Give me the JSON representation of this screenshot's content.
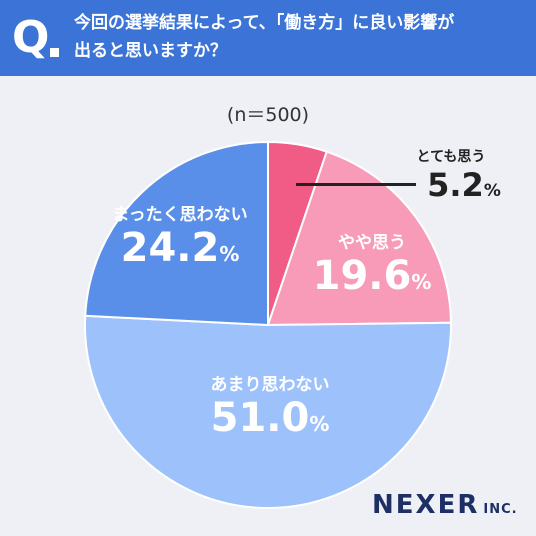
{
  "header": {
    "q_mark": "Q",
    "question": "今回の選挙結果によって、「働き方」に良い影響が\n出ると思いますか？"
  },
  "sample_size": "(n＝500)",
  "colors": {
    "header_bg": "#3b74d6",
    "background": "#eef0f5",
    "logo": "#1e2f66"
  },
  "logo": {
    "name": "NEXER",
    "suffix": "INC."
  },
  "chart_data": {
    "type": "pie",
    "start": "12 o'clock",
    "direction": "clockwise",
    "unit": "%",
    "slices": [
      {
        "label": "とても思う",
        "value": 5.2,
        "display": "5.2",
        "color": "#f05c86"
      },
      {
        "label": "やや思う",
        "value": 19.6,
        "display": "19.6",
        "color": "#f79bb9"
      },
      {
        "label": "あまり思わない",
        "value": 51.0,
        "display": "51.0",
        "color": "#9dc2fb"
      },
      {
        "label": "まったく思わない",
        "value": 24.2,
        "display": "24.2",
        "color": "#5a8fe9"
      }
    ]
  }
}
